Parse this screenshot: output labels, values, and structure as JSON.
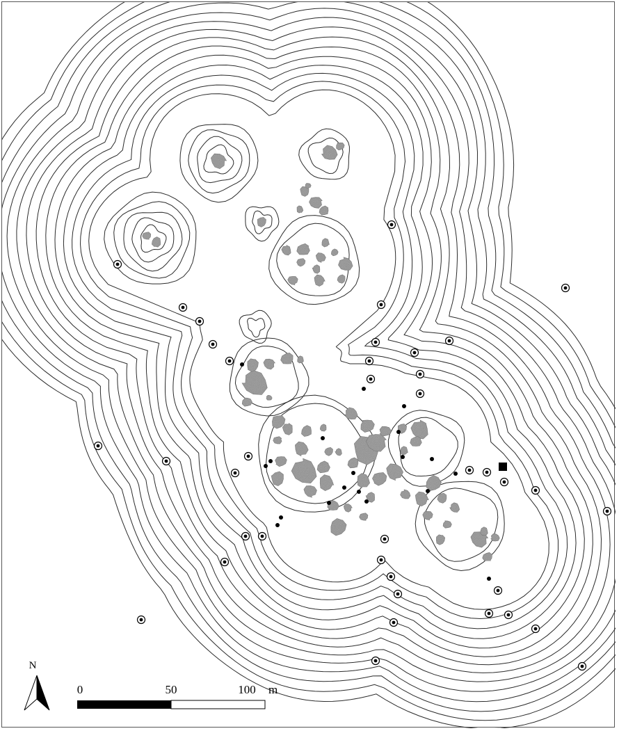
{
  "north_arrow": {
    "label": "N"
  },
  "scale_bar": {
    "ticks": [
      "0",
      "50",
      "100"
    ],
    "unit": "m"
  },
  "colors": {
    "contour": "#2a2a2a",
    "boulder": "#8a8a8a",
    "ink": "#000000"
  },
  "legend_symbols": [
    "ringed-point-icon",
    "solid-point-icon",
    "square-marker-icon"
  ]
}
